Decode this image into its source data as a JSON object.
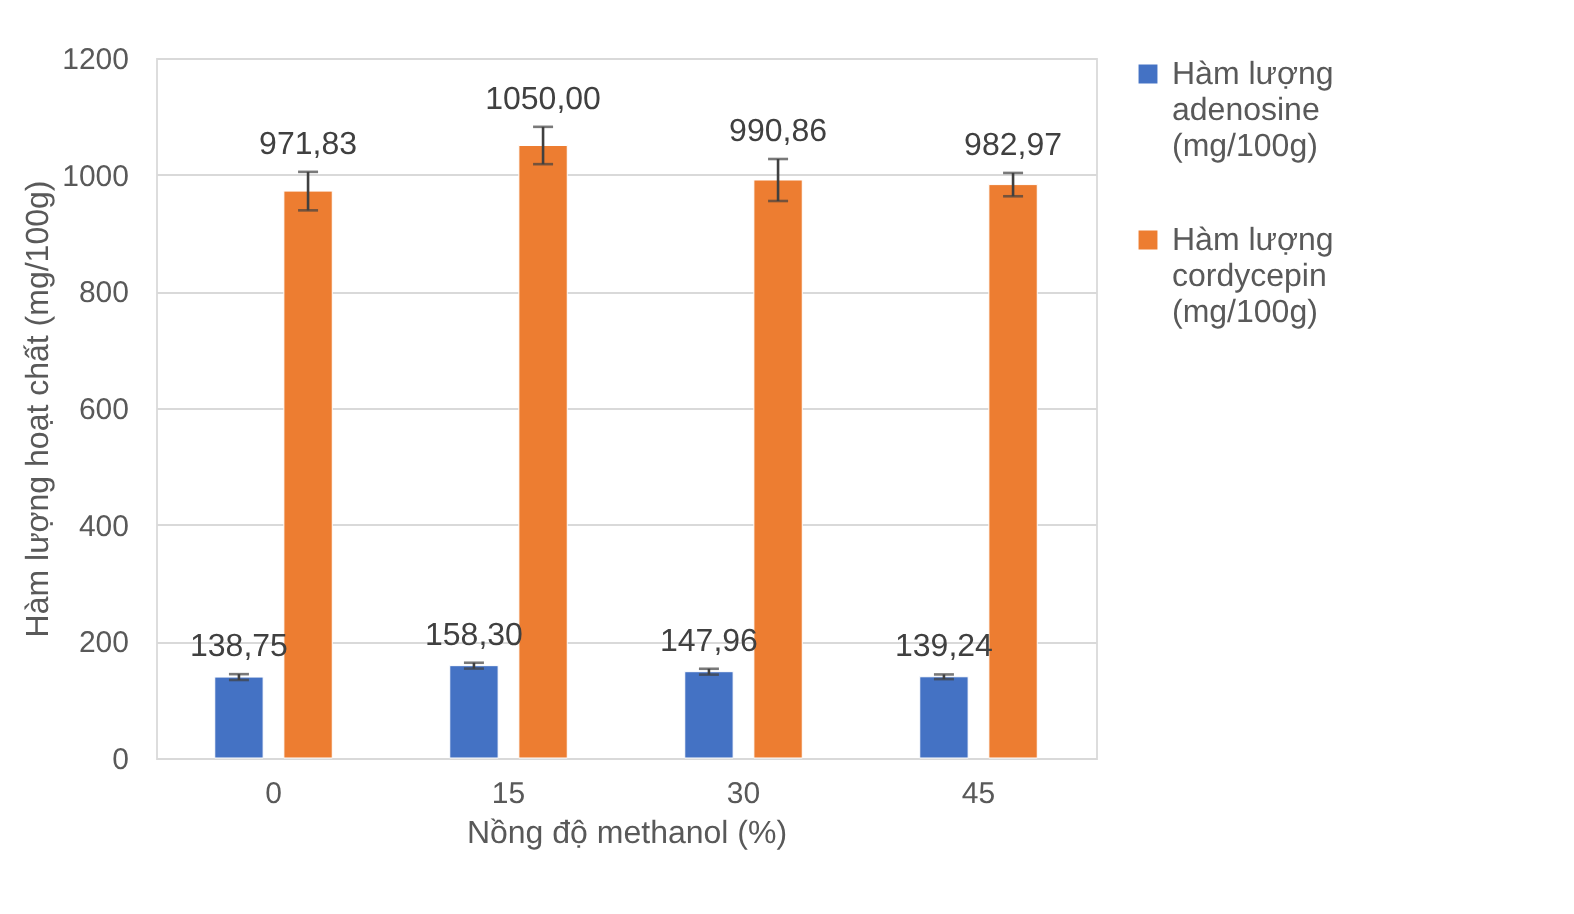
{
  "chart_data": {
    "type": "bar",
    "xlabel": "Nồng độ methanol (%)",
    "ylabel": "Hàm lượng hoạt chất (mg/100g)",
    "categories": [
      "0",
      "15",
      "30",
      "45"
    ],
    "series": [
      {
        "name": "Hàm lượng adenosine (mg/100g)",
        "color": "#4472c4",
        "values": [
          138.75,
          158.3,
          147.96,
          139.24
        ],
        "errors": [
          5,
          5,
          5,
          4
        ],
        "value_labels": [
          "138,75",
          "158,30",
          "147,96",
          "139,24"
        ]
      },
      {
        "name": "Hàm lượng cordycepin (mg/100g)",
        "color": "#ed7d31",
        "values": [
          971.83,
          1050.0,
          990.86,
          982.97
        ],
        "errors": [
          33,
          32,
          36,
          20
        ],
        "value_labels": [
          "971,83",
          "1050,00",
          "990,86",
          "982,97"
        ]
      }
    ],
    "ylim": [
      0,
      1200
    ],
    "yticks": [
      0,
      200,
      400,
      600,
      800,
      1000,
      1200
    ],
    "grid": "y",
    "legend": "right"
  }
}
